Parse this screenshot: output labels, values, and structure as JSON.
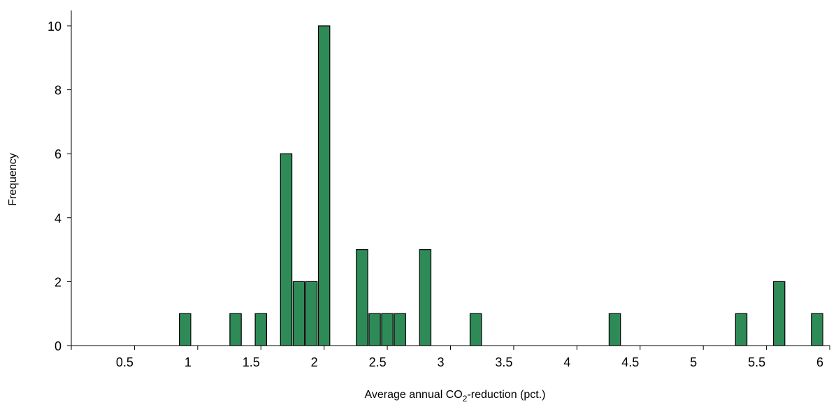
{
  "chart_data": {
    "type": "bar",
    "xlabel": "Average annual CO",
    "xlabel_subscript": "2",
    "xlabel_suffix": "-reduction (pct.)",
    "ylabel": "Frequency",
    "xlim": [
      0,
      6
    ],
    "ylim": [
      0,
      10
    ],
    "x_ticks": [
      "0.5",
      "1",
      "1.5",
      "2",
      "2.5",
      "3",
      "3.5",
      "4",
      "4.5",
      "5",
      "5.5",
      "6"
    ],
    "y_ticks": [
      "0",
      "2",
      "4",
      "6",
      "8",
      "10"
    ],
    "bar_color": "#2e8b57",
    "bar_width": 0.09,
    "x": [
      0.9,
      1.3,
      1.5,
      1.7,
      1.8,
      1.9,
      2.0,
      2.3,
      2.4,
      2.5,
      2.6,
      2.8,
      3.2,
      4.3,
      5.3,
      5.6,
      5.9
    ],
    "values": [
      1,
      1,
      1,
      6,
      2,
      2,
      10,
      3,
      1,
      1,
      1,
      3,
      1,
      1,
      1,
      2,
      1
    ],
    "grid": false,
    "legend": "none"
  }
}
